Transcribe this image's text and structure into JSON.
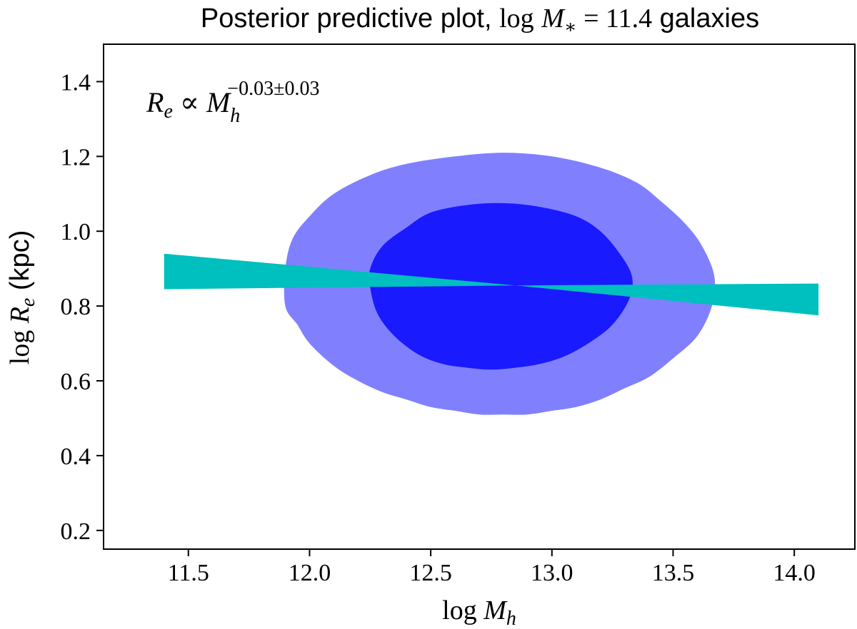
{
  "chart_data": {
    "type": "area",
    "title": {
      "prefix": "Posterior predictive plot, ",
      "math_log": "log",
      "math_var": "M",
      "math_sub": "∗",
      "math_eq": " = 11.4",
      "suffix": " galaxies"
    },
    "xlabel": {
      "log": "log",
      "var": "M",
      "sub": "h"
    },
    "ylabel": {
      "log": "log",
      "var": "R",
      "sub": "e",
      "unit": " (kpc)"
    },
    "xlim": [
      11.15,
      14.25
    ],
    "ylim": [
      0.15,
      1.5
    ],
    "x_ticks": [
      11.5,
      12.0,
      12.5,
      13.0,
      13.5,
      14.0
    ],
    "x_tick_labels": [
      "11.5",
      "12.0",
      "12.5",
      "13.0",
      "13.5",
      "14.0"
    ],
    "y_ticks": [
      0.2,
      0.4,
      0.6,
      0.8,
      1.0,
      1.2,
      1.4
    ],
    "y_tick_labels": [
      "0.2",
      "0.4",
      "0.6",
      "0.8",
      "1.0",
      "1.2",
      "1.4"
    ],
    "grid": false,
    "annotation": {
      "lhs_var": "R",
      "lhs_sub": "e",
      "rel": " ∝ ",
      "rhs_var": "M",
      "rhs_sub": "h",
      "rhs_exp": "−0.03±0.03"
    },
    "contours": [
      {
        "level": "outer",
        "color": "#8080ff",
        "points": [
          [
            11.9,
            0.8
          ],
          [
            11.95,
            0.75
          ],
          [
            12.0,
            0.7
          ],
          [
            12.1,
            0.64
          ],
          [
            12.2,
            0.6
          ],
          [
            12.3,
            0.57
          ],
          [
            12.4,
            0.55
          ],
          [
            12.5,
            0.53
          ],
          [
            12.6,
            0.52
          ],
          [
            12.7,
            0.51
          ],
          [
            12.8,
            0.51
          ],
          [
            12.9,
            0.51
          ],
          [
            13.0,
            0.52
          ],
          [
            13.1,
            0.53
          ],
          [
            13.2,
            0.55
          ],
          [
            13.3,
            0.58
          ],
          [
            13.4,
            0.61
          ],
          [
            13.5,
            0.66
          ],
          [
            13.6,
            0.72
          ],
          [
            13.66,
            0.8
          ],
          [
            13.67,
            0.88
          ],
          [
            13.62,
            0.96
          ],
          [
            13.55,
            1.02
          ],
          [
            13.45,
            1.08
          ],
          [
            13.35,
            1.13
          ],
          [
            13.2,
            1.17
          ],
          [
            13.0,
            1.2
          ],
          [
            12.8,
            1.21
          ],
          [
            12.6,
            1.2
          ],
          [
            12.4,
            1.18
          ],
          [
            12.25,
            1.15
          ],
          [
            12.1,
            1.1
          ],
          [
            12.0,
            1.04
          ],
          [
            11.93,
            0.98
          ],
          [
            11.9,
            0.9
          ]
        ]
      },
      {
        "level": "inner",
        "color": "#1a1aff",
        "points": [
          [
            12.25,
            0.85
          ],
          [
            12.28,
            0.78
          ],
          [
            12.35,
            0.72
          ],
          [
            12.45,
            0.67
          ],
          [
            12.55,
            0.645
          ],
          [
            12.65,
            0.635
          ],
          [
            12.75,
            0.63
          ],
          [
            12.85,
            0.635
          ],
          [
            12.95,
            0.645
          ],
          [
            13.05,
            0.665
          ],
          [
            13.15,
            0.7
          ],
          [
            13.25,
            0.75
          ],
          [
            13.32,
            0.82
          ],
          [
            13.33,
            0.88
          ],
          [
            13.28,
            0.94
          ],
          [
            13.2,
            1.0
          ],
          [
            13.1,
            1.04
          ],
          [
            12.95,
            1.065
          ],
          [
            12.8,
            1.075
          ],
          [
            12.65,
            1.07
          ],
          [
            12.5,
            1.05
          ],
          [
            12.4,
            1.01
          ],
          [
            12.3,
            0.96
          ],
          [
            12.25,
            0.9
          ]
        ]
      }
    ],
    "band": {
      "color": "#00bfbf",
      "x": [
        11.4,
        12.85,
        14.1
      ],
      "upper": [
        0.94,
        0.855,
        0.86
      ],
      "lower": [
        0.845,
        0.855,
        0.775
      ]
    }
  }
}
